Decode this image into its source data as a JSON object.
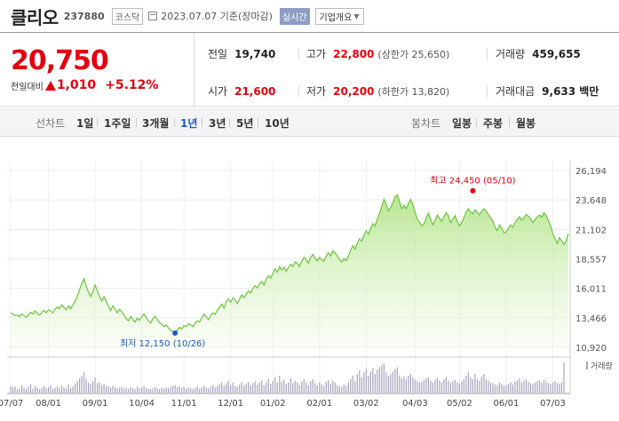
{
  "header": {
    "name": "클리오",
    "code": "237880",
    "market": "코스닥",
    "date": "2023.07.07 기준(장마감)",
    "realtime": "실시간",
    "info_button": "기업개요"
  },
  "quote": {
    "price": "20,750",
    "change_label": "전일대비",
    "change": "1,010",
    "change_pct": "+5.12%",
    "stats": {
      "prev_label": "전일",
      "prev": "19,740",
      "high_label": "고가",
      "high": "22,800",
      "upper": "(상한가 25,650)",
      "volume_label": "거래량",
      "volume": "459,655",
      "open_label": "시가",
      "open": "21,600",
      "low_label": "저가",
      "low": "20,200",
      "lower": "(하한가 13,820)",
      "amount_label": "거래대금",
      "amount": "9,633 백만"
    }
  },
  "periods": {
    "line_label": "선차트",
    "items": [
      "1일",
      "1주일",
      "3개월",
      "1년",
      "3년",
      "5년",
      "10년"
    ],
    "active": "1년",
    "candle_label": "봉차트",
    "candle_items": [
      "일봉",
      "주봉",
      "월봉"
    ]
  },
  "colors": {
    "up": "#e3000f",
    "line": "#6cc53e",
    "fill": "#cdeeb0",
    "volume": "#a9a2bd",
    "low_dot": "#1e58c8"
  },
  "chart_data": {
    "type": "area",
    "y_ticks": [
      "26,194",
      "23,648",
      "21,102",
      "18,557",
      "16,011",
      "13,466",
      "10,920"
    ],
    "ylim": [
      10920,
      26194
    ],
    "x_ticks": [
      "07/07",
      "08/01",
      "09/01",
      "10/04",
      "11/01",
      "12/01",
      "01/02",
      "02/01",
      "03/02",
      "04/03",
      "05/02",
      "06/01",
      "07/03"
    ],
    "x_tick_index": [
      0,
      17,
      38,
      59,
      78,
      99,
      118,
      139,
      160,
      182,
      202,
      223,
      244
    ],
    "high_label": "최고 24,450 (05/10)",
    "high": {
      "index": 208,
      "value": 24450
    },
    "low_label": "최저 12,150 (10/26)",
    "low": {
      "index": 74,
      "value": 12150
    },
    "volume_label": "거래량",
    "series": [
      {
        "values": [
          13900,
          13800,
          13650,
          13700,
          13550,
          13800,
          13650,
          13500,
          13700,
          13950,
          13800,
          14050,
          13850,
          13700,
          13950,
          14100,
          13900,
          14150,
          14050,
          13900,
          14200,
          14400,
          14250,
          14600,
          14350,
          14150,
          14500,
          14250,
          14600,
          14900,
          15300,
          15900,
          16400,
          16850,
          16200,
          15700,
          15300,
          15700,
          16300,
          15800,
          15300,
          14900,
          15300,
          14900,
          14500,
          14100,
          14500,
          14200,
          13900,
          14200,
          14000,
          13700,
          13400,
          13200,
          13600,
          13300,
          13100,
          13450,
          13250,
          13550,
          13800,
          13500,
          13200,
          13000,
          13400,
          13600,
          13300,
          13050,
          12900,
          12700,
          12850,
          12600,
          12400,
          12300,
          12150,
          12400,
          12650,
          12500,
          12800,
          12700,
          12950,
          12850,
          12700,
          13000,
          13200,
          13100,
          13450,
          13800,
          13550,
          13300,
          13650,
          13900,
          13750,
          14100,
          14400,
          14650,
          14300,
          14850,
          15100,
          14800,
          15200,
          15000,
          14700,
          15100,
          15450,
          15200,
          15500,
          15800,
          15600,
          16000,
          16250,
          16050,
          16400,
          16600,
          16300,
          16800,
          17100,
          16900,
          17300,
          17700,
          17400,
          17900,
          17600,
          17850,
          17500,
          17800,
          18100,
          17900,
          18300,
          18200,
          17900,
          18350,
          18700,
          18500,
          18200,
          18700,
          18950,
          18650,
          18400,
          18700,
          18500,
          18350,
          18800,
          19100,
          18800,
          19250,
          19100,
          18800,
          18500,
          18300,
          18600,
          18400,
          18800,
          19300,
          19700,
          19400,
          19900,
          20300,
          20100,
          20600,
          21000,
          20700,
          21200,
          21600,
          21400,
          22000,
          22500,
          23100,
          23700,
          23300,
          22700,
          23000,
          23400,
          23900,
          24100,
          23500,
          22900,
          23200,
          22900,
          23350,
          23700,
          23300,
          22600,
          22000,
          21700,
          21400,
          21600,
          22100,
          22500,
          22000,
          21500,
          21900,
          22350,
          22100,
          21800,
          22200,
          22550,
          22300,
          21700,
          22000,
          22300,
          21800,
          21400,
          21700,
          22150,
          22600,
          22900,
          22600,
          22450,
          22800,
          22600,
          22350,
          22700,
          22900,
          22650,
          22400,
          22100,
          21800,
          21300,
          21000,
          21500,
          21200,
          20800,
          20900,
          21200,
          21500,
          21300,
          21700,
          21950,
          22200,
          21900,
          22100,
          22400,
          22250,
          22000,
          21700,
          21950,
          22200,
          22350,
          22150,
          22550,
          22300,
          21900,
          21400,
          20700,
          20300,
          19900,
          20400,
          20100,
          19800,
          20100,
          20750
        ]
      }
    ],
    "volumes": [
      0.2,
      0.15,
      0.18,
      0.1,
      0.12,
      0.22,
      0.14,
      0.1,
      0.17,
      0.25,
      0.12,
      0.19,
      0.15,
      0.1,
      0.14,
      0.2,
      0.13,
      0.16,
      0.22,
      0.11,
      0.14,
      0.19,
      0.13,
      0.21,
      0.15,
      0.12,
      0.24,
      0.13,
      0.18,
      0.26,
      0.35,
      0.42,
      0.5,
      0.6,
      0.4,
      0.3,
      0.25,
      0.33,
      0.45,
      0.28,
      0.3,
      0.22,
      0.26,
      0.2,
      0.18,
      0.15,
      0.2,
      0.16,
      0.13,
      0.15,
      0.17,
      0.12,
      0.14,
      0.11,
      0.16,
      0.13,
      0.1,
      0.18,
      0.12,
      0.15,
      0.2,
      0.14,
      0.12,
      0.1,
      0.13,
      0.16,
      0.12,
      0.11,
      0.14,
      0.12,
      0.15,
      0.13,
      0.18,
      0.2,
      0.22,
      0.16,
      0.19,
      0.14,
      0.17,
      0.12,
      0.15,
      0.13,
      0.11,
      0.14,
      0.18,
      0.12,
      0.16,
      0.2,
      0.15,
      0.12,
      0.17,
      0.22,
      0.16,
      0.19,
      0.25,
      0.3,
      0.2,
      0.28,
      0.35,
      0.22,
      0.3,
      0.2,
      0.18,
      0.24,
      0.3,
      0.2,
      0.26,
      0.32,
      0.22,
      0.28,
      0.34,
      0.24,
      0.3,
      0.36,
      0.22,
      0.3,
      0.4,
      0.26,
      0.35,
      0.45,
      0.3,
      0.5,
      0.32,
      0.38,
      0.25,
      0.3,
      0.42,
      0.28,
      0.35,
      0.3,
      0.22,
      0.32,
      0.4,
      0.3,
      0.22,
      0.34,
      0.4,
      0.28,
      0.22,
      0.3,
      0.24,
      0.2,
      0.32,
      0.38,
      0.26,
      0.36,
      0.3,
      0.22,
      0.18,
      0.16,
      0.24,
      0.2,
      0.3,
      0.4,
      0.5,
      0.35,
      0.55,
      0.65,
      0.45,
      0.6,
      0.7,
      0.5,
      0.62,
      0.72,
      0.55,
      0.68,
      0.75,
      0.8,
      0.85,
      0.6,
      0.5,
      0.55,
      0.62,
      0.7,
      0.75,
      0.5,
      0.42,
      0.48,
      0.4,
      0.5,
      0.55,
      0.45,
      0.38,
      0.35,
      0.3,
      0.32,
      0.36,
      0.42,
      0.45,
      0.35,
      0.3,
      0.38,
      0.44,
      0.36,
      0.3,
      0.4,
      0.46,
      0.35,
      0.28,
      0.34,
      0.38,
      0.3,
      0.26,
      0.32,
      0.4,
      0.5,
      0.6,
      0.45,
      0.4,
      0.55,
      0.4,
      0.35,
      0.48,
      0.55,
      0.4,
      0.35,
      0.3,
      0.28,
      0.24,
      0.22,
      0.3,
      0.25,
      0.2,
      0.22,
      0.26,
      0.3,
      0.24,
      0.32,
      0.36,
      0.42,
      0.3,
      0.35,
      0.4,
      0.32,
      0.28,
      0.24,
      0.3,
      0.34,
      0.36,
      0.3,
      0.38,
      0.32,
      0.28,
      0.25,
      0.3,
      0.35,
      0.28,
      0.26,
      0.3,
      0.9
    ]
  }
}
